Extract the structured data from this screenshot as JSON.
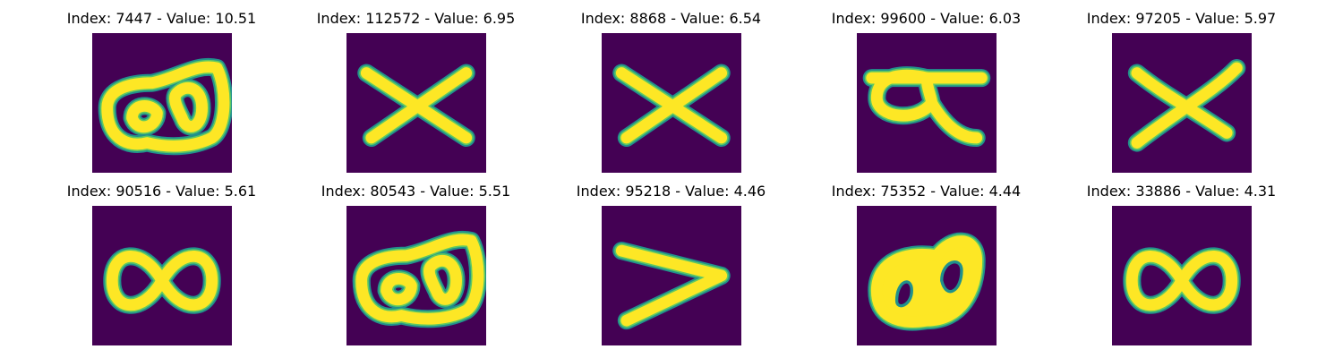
{
  "colors": {
    "background": "#440154",
    "stroke_edge": "#21918c",
    "stroke_mid": "#5ec962",
    "stroke_core": "#fde725"
  },
  "panels": [
    {
      "title": "Index: 7447 - Value: 10.51",
      "glyph": "double-loop-scrawl"
    },
    {
      "title": "Index: 112572 - Value: 6.95",
      "glyph": "x-cross"
    },
    {
      "title": "Index: 8868 - Value: 6.54",
      "glyph": "x-cross"
    },
    {
      "title": "Index: 99600 - Value: 6.03",
      "glyph": "alpha-loop"
    },
    {
      "title": "Index: 97205 - Value: 5.97",
      "glyph": "x-cross-bold"
    },
    {
      "title": "Index: 90516 - Value: 5.61",
      "glyph": "infinity"
    },
    {
      "title": "Index: 80543 - Value: 5.51",
      "glyph": "double-loop-scrawl"
    },
    {
      "title": "Index: 95218 - Value: 4.46",
      "glyph": "v-shape"
    },
    {
      "title": "Index: 75352 - Value: 4.44",
      "glyph": "filled-double-loop"
    },
    {
      "title": "Index: 33886 - Value: 4.31",
      "glyph": "infinity"
    }
  ]
}
